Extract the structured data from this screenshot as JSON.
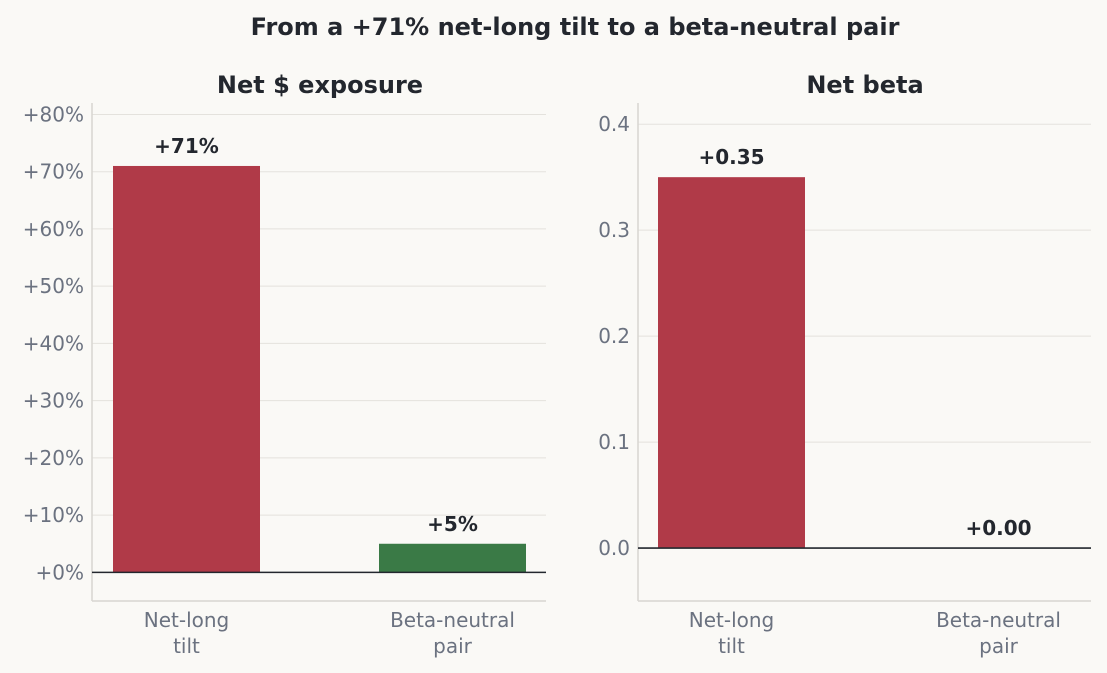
{
  "figure": {
    "title": "From a +71% net-long tilt to a beta-neutral pair"
  },
  "colors": {
    "net_long": "#b03a48",
    "beta_neutral": "#3a7a46",
    "background": "#faf9f6",
    "text_dark": "#23272e",
    "text_muted": "#6b7280"
  },
  "chart_data": [
    {
      "type": "bar",
      "title": "Net $ exposure",
      "categories": [
        "Net-long\ntilt",
        "Beta-neutral\npair"
      ],
      "values": [
        71,
        5
      ],
      "value_labels": [
        "+71%",
        "+5%"
      ],
      "ylim": [
        -5,
        82
      ],
      "yticks": [
        0,
        10,
        20,
        30,
        40,
        50,
        60,
        70,
        80
      ],
      "ytick_labels": [
        "+0%",
        "+10%",
        "+20%",
        "+30%",
        "+40%",
        "+50%",
        "+60%",
        "+70%",
        "+80%"
      ],
      "grid": true
    },
    {
      "type": "bar",
      "title": "Net beta",
      "categories": [
        "Net-long\ntilt",
        "Beta-neutral\npair"
      ],
      "values": [
        0.35,
        0.0
      ],
      "value_labels": [
        "+0.35",
        "+0.00"
      ],
      "ylim": [
        -0.05,
        0.42
      ],
      "yticks": [
        0.0,
        0.1,
        0.2,
        0.3,
        0.4
      ],
      "ytick_labels": [
        "0.0",
        "0.1",
        "0.2",
        "0.3",
        "0.4"
      ],
      "grid": true
    }
  ]
}
